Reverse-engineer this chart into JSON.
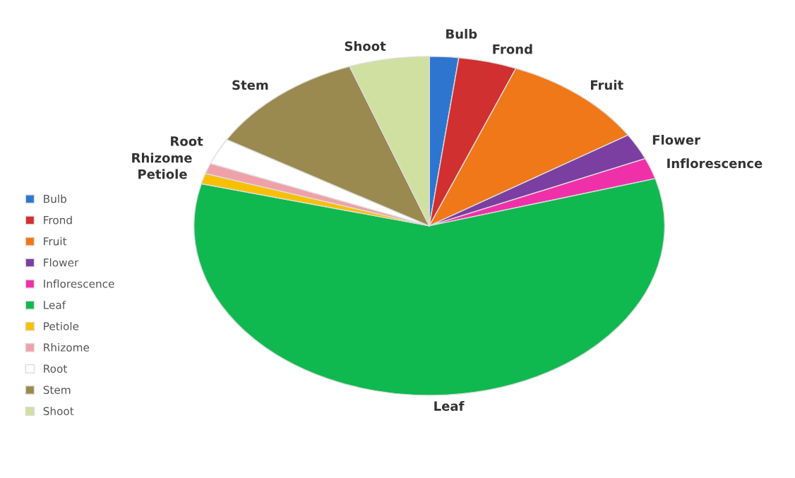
{
  "chart_data": {
    "type": "pie",
    "categories": [
      "Bulb",
      "Frond",
      "Fruit",
      "Flower",
      "Inflorescence",
      "Leaf",
      "Petiole",
      "Rhizome",
      "Root",
      "Stem",
      "Shoot"
    ],
    "values": [
      2,
      4,
      10,
      2.5,
      2,
      58.5,
      1,
      1,
      2.5,
      11,
      5.5
    ],
    "colors": [
      "#2e75d0",
      "#d03030",
      "#f07818",
      "#7a3fa0",
      "#f030a8",
      "#10b850",
      "#f8c000",
      "#f0a0a8",
      "#ffffff",
      "#9a8a50",
      "#d0e0a0"
    ],
    "legend": "left"
  }
}
